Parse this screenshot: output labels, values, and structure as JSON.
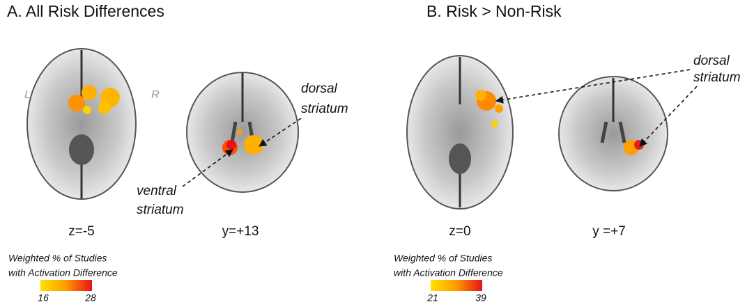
{
  "panels": [
    {
      "title": "A. All Risk Differences",
      "hemisphere_labels": [
        "L",
        "R"
      ],
      "slice_labels": [
        "z=-5",
        "y=+13"
      ],
      "annotations": [
        {
          "lines": [
            "dorsal",
            "striatum"
          ]
        },
        {
          "lines": [
            "ventral",
            "striatum"
          ]
        }
      ],
      "colorbar": {
        "title_lines": [
          "Weighted % of Studies",
          "with Activation Difference"
        ],
        "min": 16,
        "max": 28
      }
    },
    {
      "title": "B. Risk > Non-Risk",
      "slice_labels": [
        "z=0",
        "y =+7"
      ],
      "annotations": [
        {
          "lines": [
            "dorsal",
            "striatum"
          ]
        }
      ],
      "colorbar": {
        "title_lines": [
          "Weighted % of Studies",
          "with Activation Difference"
        ],
        "min": 21,
        "max": 39
      }
    }
  ]
}
